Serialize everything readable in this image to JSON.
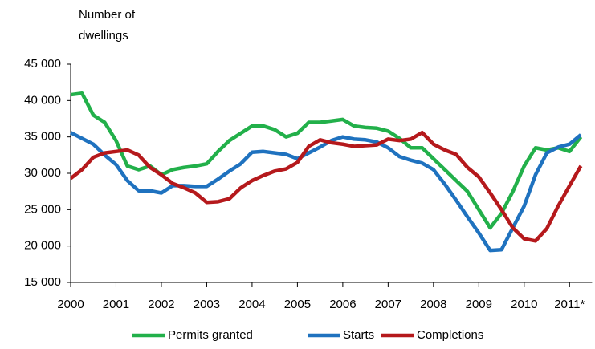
{
  "chart_data": {
    "type": "line",
    "y_label": [
      "Number of",
      "dwellings"
    ],
    "categories": [
      "2000",
      null,
      null,
      null,
      "2001",
      null,
      null,
      null,
      "2002",
      null,
      null,
      null,
      "2003",
      null,
      null,
      null,
      "2004",
      null,
      null,
      null,
      "2005",
      null,
      null,
      null,
      "2006",
      null,
      null,
      null,
      "2007",
      null,
      null,
      null,
      "2008",
      null,
      null,
      null,
      "2009",
      null,
      null,
      null,
      "2010",
      null,
      null,
      null,
      "2011*",
      null
    ],
    "series": [
      {
        "name": "Permits granted",
        "color": "#22b04a",
        "values": [
          40800,
          41000,
          38000,
          37000,
          34500,
          31000,
          30500,
          31000,
          29800,
          30500,
          30800,
          31000,
          31300,
          33000,
          34500,
          35500,
          36500,
          36500,
          36000,
          35000,
          35500,
          37000,
          37000,
          37200,
          37400,
          36500,
          36300,
          36200,
          35800,
          34800,
          33500,
          33500,
          32000,
          30500,
          29000,
          27500,
          25000,
          22500,
          24500,
          27500,
          31000,
          33500,
          33200,
          33500,
          33000,
          35000
        ]
      },
      {
        "name": "Starts",
        "color": "#1f72bf",
        "values": [
          35600,
          34800,
          34000,
          32500,
          31200,
          29000,
          27600,
          27600,
          27300,
          28300,
          28300,
          28200,
          28200,
          29200,
          30300,
          31300,
          32900,
          33000,
          32800,
          32600,
          32000,
          32800,
          33600,
          34500,
          35000,
          34700,
          34600,
          34300,
          33500,
          32300,
          31800,
          31400,
          30500,
          28500,
          26300,
          24000,
          21800,
          19400,
          19500,
          22500,
          25500,
          29800,
          32800,
          33600,
          34000,
          35300
        ]
      },
      {
        "name": "Completions",
        "color": "#b5191c",
        "values": [
          29300,
          30500,
          32200,
          32800,
          33000,
          33200,
          32500,
          30800,
          29800,
          28600,
          28000,
          27300,
          26000,
          26100,
          26500,
          28000,
          29000,
          29700,
          30300,
          30600,
          31500,
          33700,
          34600,
          34200,
          34000,
          33700,
          33800,
          33900,
          34700,
          34500,
          34700,
          35600,
          34000,
          33200,
          32600,
          30800,
          29500,
          27300,
          25000,
          22500,
          21000,
          20700,
          22400,
          25500,
          28300,
          31000
        ]
      }
    ],
    "ylim": [
      15000,
      45000
    ],
    "yticks": [
      {
        "value": 15000,
        "label": "15 000"
      },
      {
        "value": 20000,
        "label": "20 000"
      },
      {
        "value": 25000,
        "label": "25 000"
      },
      {
        "value": 30000,
        "label": "30 000"
      },
      {
        "value": 35000,
        "label": "35 000"
      },
      {
        "value": 40000,
        "label": "40 000"
      },
      {
        "value": 45000,
        "label": "45 000"
      }
    ],
    "grid": false,
    "legend": "bottom"
  }
}
